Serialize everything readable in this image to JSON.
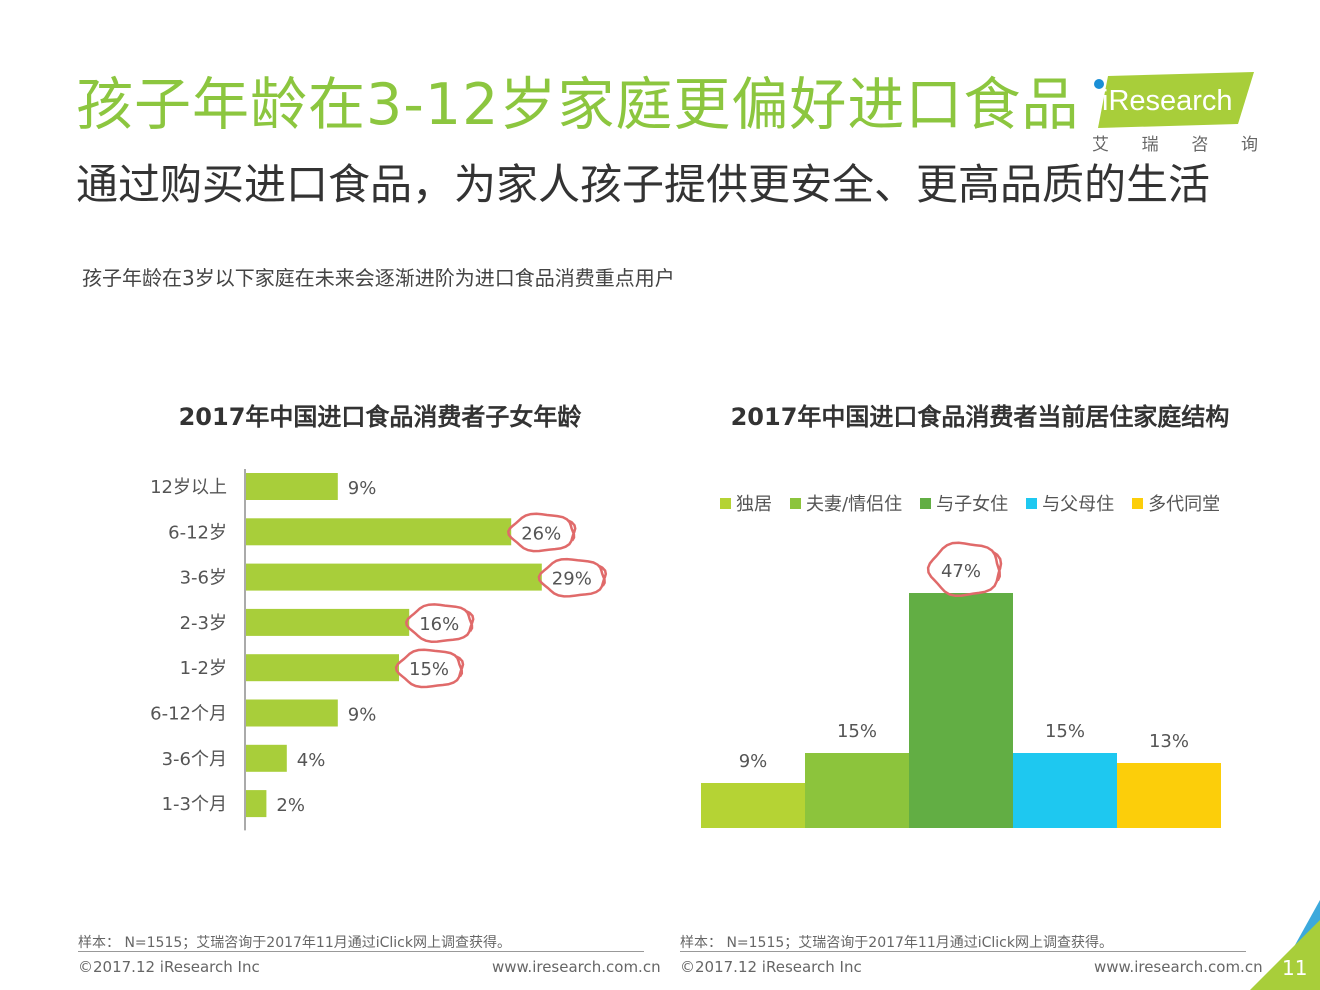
{
  "header": {
    "title": "孩子年龄在3-12岁家庭更偏好进口食品",
    "subtitle": "通过购买进口食品，为家人孩子提供更安全、更高品质的生活",
    "note": "孩子年龄在3岁以下家庭在未来会逐渐进阶为进口食品消费重点用户"
  },
  "logo": {
    "brand": "iResearch",
    "cn_chars": [
      "艾",
      "瑞",
      "咨",
      "询"
    ]
  },
  "colors": {
    "title_green": "#8cc63f",
    "bar_lime": "#a8ce3a",
    "circle_red": "#e06a6a"
  },
  "chart_data": [
    {
      "type": "bar",
      "orientation": "horizontal",
      "title": "2017年中国进口食品消费者子女年龄",
      "categories": [
        "12岁以上",
        "6-12岁",
        "3-6岁",
        "2-3岁",
        "1-2岁",
        "6-12个月",
        "3-6个月",
        "1-3个月"
      ],
      "values": [
        9,
        26,
        29,
        16,
        15,
        9,
        4,
        2
      ],
      "labels": [
        "9%",
        "26%",
        "29%",
        "16%",
        "15%",
        "9%",
        "4%",
        "2%"
      ],
      "highlighted": [
        "6-12岁",
        "3-6岁",
        "2-3岁",
        "1-2岁"
      ],
      "unit": "%"
    },
    {
      "type": "bar",
      "orientation": "vertical",
      "title": "2017年中国进口食品消费者当前居住家庭结构",
      "categories": [
        "独居",
        "夫妻/情侣住",
        "与子女住",
        "与父母住",
        "多代同堂"
      ],
      "values": [
        9,
        15,
        47,
        15,
        13
      ],
      "labels": [
        "9%",
        "15%",
        "47%",
        "15%",
        "13%"
      ],
      "colors": [
        "#b5d334",
        "#8cc43c",
        "#62ae44",
        "#1ec8f0",
        "#fcce0a"
      ],
      "highlighted": [
        "与子女住"
      ],
      "legend": "top",
      "unit": "%"
    }
  ],
  "footer": {
    "left": {
      "source": "样本： N=1515；艾瑞咨询于2017年11月通过iClick网上调查获得。",
      "copyright": "©2017.12 iResearch Inc",
      "url": "www.iresearch.com.cn"
    },
    "right": {
      "source": "样本： N=1515；艾瑞咨询于2017年11月通过iClick网上调查获得。",
      "copyright": "©2017.12 iResearch Inc",
      "url": "www.iresearch.com.cn"
    },
    "page_number": "11"
  }
}
